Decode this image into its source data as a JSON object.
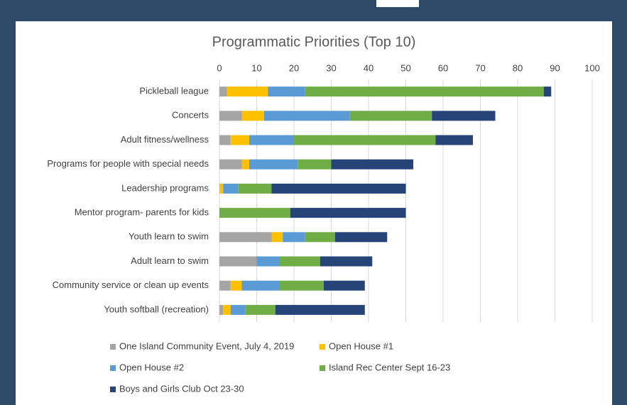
{
  "chart_data": {
    "type": "bar",
    "orientation": "horizontal",
    "stacked": true,
    "title": "Programmatic Priorities (Top 10)",
    "categories": [
      "Pickleball league",
      "Concerts",
      "Adult fitness/wellness",
      "Programs for people with special needs",
      "Leadership programs",
      "Mentor program- parents for kids",
      "Youth learn to swim",
      "Adult learn to swim",
      "Community service or clean up events",
      "Youth softball (recreation)"
    ],
    "series": [
      {
        "name": "One Island Community Event, July 4, 2019",
        "color": "#a5a5a5",
        "values": [
          2,
          6,
          3,
          6,
          0,
          0,
          14,
          10,
          3,
          1
        ]
      },
      {
        "name": "Open House #1",
        "color": "#ffc000",
        "values": [
          11,
          6,
          5,
          2,
          1,
          0,
          3,
          0,
          3,
          2
        ]
      },
      {
        "name": "Open House #2",
        "color": "#5b9bd5",
        "values": [
          10,
          23,
          12,
          13,
          4,
          0,
          6,
          6,
          10,
          4
        ]
      },
      {
        "name": "Island Rec Center Sept 16-23",
        "color": "#70ad47",
        "values": [
          64,
          22,
          38,
          9,
          9,
          19,
          8,
          11,
          12,
          8
        ]
      },
      {
        "name": "Boys and Girls Club Oct 23-30",
        "color": "#264478",
        "values": [
          2,
          17,
          10,
          22,
          36,
          31,
          14,
          14,
          11,
          24
        ]
      }
    ],
    "xlim": [
      0,
      100
    ],
    "xticks": [
      0,
      10,
      20,
      30,
      40,
      50,
      60,
      70,
      80,
      90,
      100
    ],
    "grid": true,
    "legend": "bottom"
  }
}
